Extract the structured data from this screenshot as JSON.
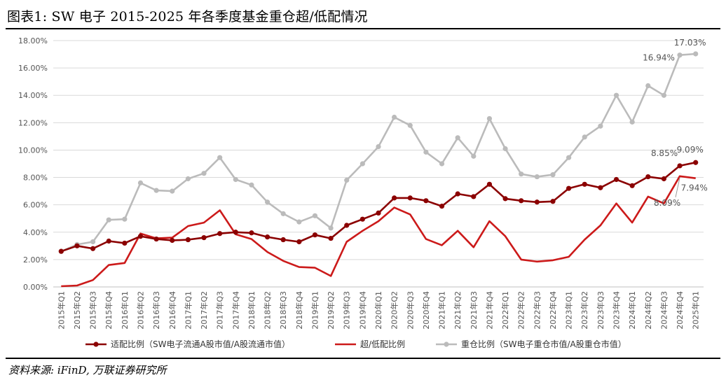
{
  "title": "图表1:  SW 电子 2015-2025 年各季度基金重仓超/低配情况",
  "source": "资料来源:  iFinD,  万联证券研究所",
  "chart_data": {
    "type": "line",
    "title": "图表1:  SW 电子 2015-2025 年各季度基金重仓超/低配情况",
    "xlabel": "",
    "ylabel": "",
    "ylim": [
      0,
      18
    ],
    "yticks": [
      0,
      2,
      4,
      6,
      8,
      10,
      12,
      14,
      16,
      18
    ],
    "ytick_labels": [
      "0.00%",
      "2.00%",
      "4.00%",
      "6.00%",
      "8.00%",
      "10.00%",
      "12.00%",
      "14.00%",
      "16.00%",
      "18.00%"
    ],
    "grid": true,
    "legend_position": "bottom",
    "categories": [
      "2015年Q1",
      "2015年Q2",
      "2015年Q3",
      "2015年Q4",
      "2016年Q1",
      "2016年Q2",
      "2016年Q3",
      "2016年Q4",
      "2017年Q1",
      "2017年Q2",
      "2017年Q3",
      "2017年Q4",
      "2018年Q1",
      "2018年Q2",
      "2018年Q3",
      "2018年Q4",
      "2019年Q1",
      "2019年Q2",
      "2019年Q3",
      "2019年Q4",
      "2020年Q1",
      "2020年Q2",
      "2020年Q3",
      "2020年Q4",
      "2021年Q1",
      "2021年Q2",
      "2021年Q3",
      "2021年Q4",
      "2022年Q1",
      "2022年Q2",
      "2022年Q3",
      "2022年Q4",
      "2023年Q1",
      "2023年Q2",
      "2023年Q3",
      "2023年Q4",
      "2024年Q1",
      "2024年Q2",
      "2024年Q3",
      "2024年Q4",
      "2025年Q1"
    ],
    "series": [
      {
        "name": "适配比例（SW电子流通A股市值/A股流通市值）",
        "color": "#8B0000",
        "marker": true,
        "values": [
          2.6,
          3.0,
          2.8,
          3.35,
          3.2,
          3.7,
          3.5,
          3.4,
          3.45,
          3.6,
          3.9,
          4.0,
          3.95,
          3.65,
          3.45,
          3.3,
          3.8,
          3.55,
          4.5,
          4.95,
          5.4,
          6.5,
          6.5,
          6.3,
          5.9,
          6.8,
          6.6,
          7.5,
          6.45,
          6.3,
          6.2,
          6.25,
          7.2,
          7.5,
          7.25,
          7.85,
          7.4,
          8.05,
          7.9,
          8.85,
          9.09
        ]
      },
      {
        "name": "超/低配比例",
        "color": "#CC1A1A",
        "marker": false,
        "values": [
          0.05,
          0.1,
          0.5,
          1.6,
          1.75,
          3.9,
          3.55,
          3.6,
          4.45,
          4.7,
          5.6,
          3.85,
          3.5,
          2.55,
          1.9,
          1.45,
          1.4,
          0.8,
          3.3,
          4.1,
          4.8,
          5.8,
          5.3,
          3.5,
          3.05,
          4.1,
          2.9,
          4.8,
          3.7,
          2.0,
          1.85,
          1.95,
          2.2,
          3.45,
          4.5,
          6.1,
          4.7,
          6.6,
          6.1,
          8.09,
          7.94
        ]
      },
      {
        "name": "重仓比例（SW电子重仓市值/A股重仓市值）",
        "color": "#BBBBBB",
        "marker": true,
        "values": [
          2.6,
          3.1,
          3.3,
          4.9,
          4.95,
          7.6,
          7.05,
          7.0,
          7.9,
          8.3,
          9.45,
          7.85,
          7.45,
          6.2,
          5.35,
          4.75,
          5.2,
          4.3,
          7.8,
          9.0,
          10.25,
          12.4,
          11.8,
          9.85,
          9.0,
          10.9,
          9.55,
          12.3,
          10.1,
          8.25,
          8.05,
          8.2,
          9.45,
          10.95,
          11.75,
          14.0,
          12.05,
          14.7,
          14.0,
          16.94,
          17.03
        ]
      }
    ],
    "data_labels": [
      {
        "series": 2,
        "index": 40,
        "text": "17.03%"
      },
      {
        "series": 2,
        "index": 39,
        "text": "16.94%"
      },
      {
        "series": 0,
        "index": 40,
        "text": "9.09%"
      },
      {
        "series": 0,
        "index": 39,
        "text": "8.85%"
      },
      {
        "series": 1,
        "index": 40,
        "text": "7.94%"
      },
      {
        "series": 1,
        "index": 39,
        "text": "8.09%"
      }
    ]
  }
}
